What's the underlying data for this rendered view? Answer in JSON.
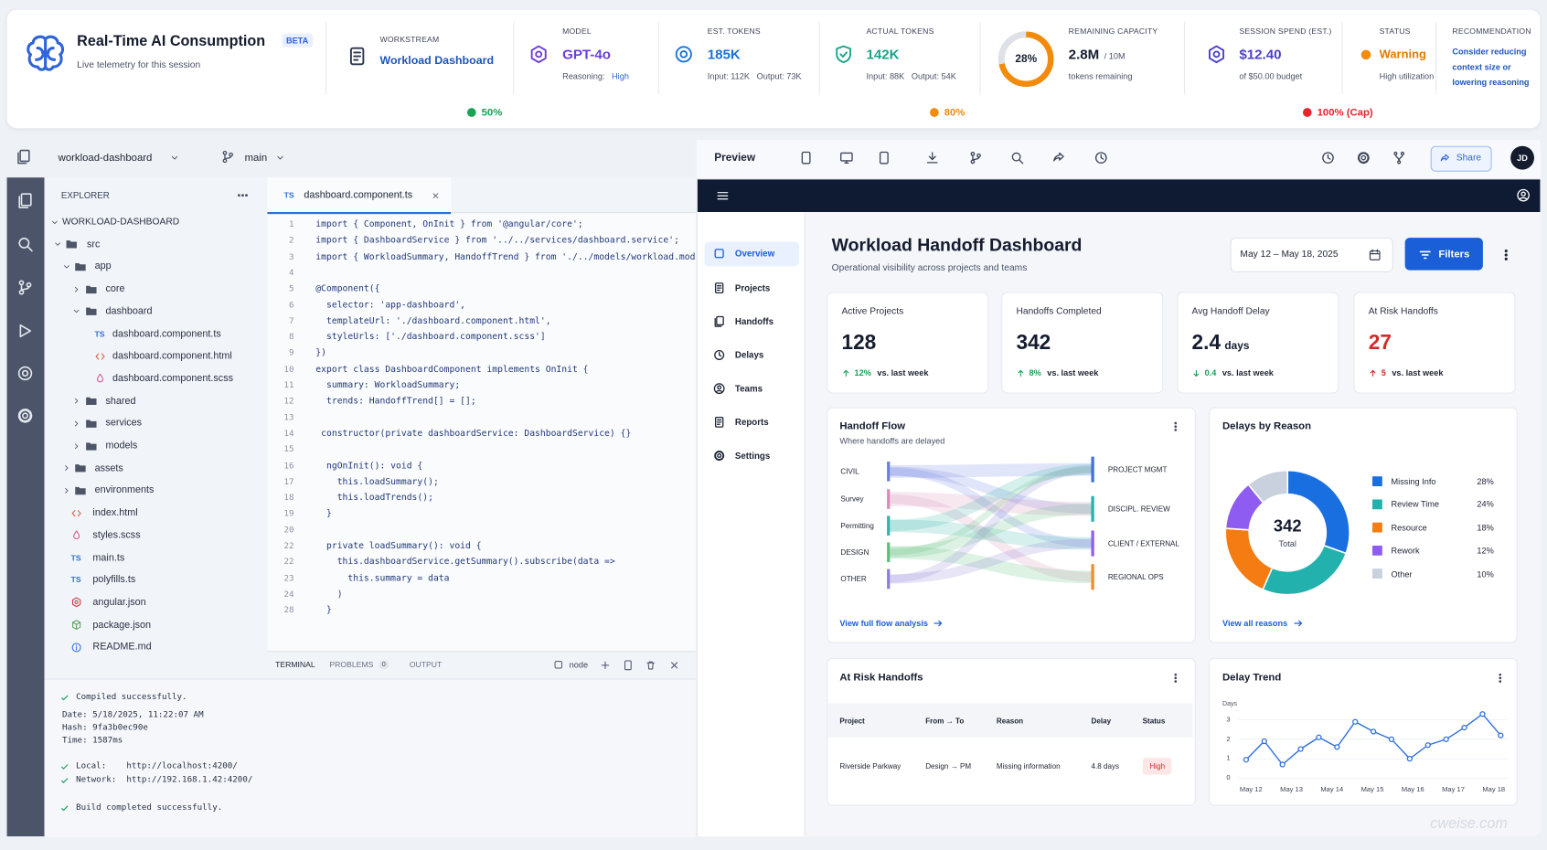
{
  "header": {
    "title": "Real-Time AI Consumption",
    "badge": "BETA",
    "subtitle": "Live telemetry for this session",
    "stats": [
      {
        "label": "WORKSTREAM",
        "value": "Workload Dashboard"
      },
      {
        "label": "MODEL",
        "value": "GPT-4o",
        "sub": "Reasoning:",
        "sub_value": "High"
      },
      {
        "label": "EST. TOKENS",
        "value": "185K",
        "sub": "Input: 112K   Output: 73K"
      },
      {
        "label": "ACTUAL TOKENS",
        "value": "142K",
        "sub": "Input: 88K   Output: 54K"
      },
      {
        "label": "REMAINING CAPACITY",
        "percent": {
          "value": 28,
          "label": "28%"
        },
        "value": "2.8M",
        "unit": "/ 10M",
        "sub": "tokens remaining"
      },
      {
        "label": "SESSION SPEND (EST.)",
        "value": "$12.40",
        "sub": "of $50.00 budget"
      },
      {
        "label": "STATUS",
        "value": "Warning",
        "sub": "High utilization"
      },
      {
        "label": "RECOMMENDATION",
        "lines": [
          "Consider reducing",
          "context size or",
          "lowering reasoning"
        ]
      }
    ],
    "thresholds": [
      "50%",
      "80%",
      "100% (Cap)"
    ]
  },
  "ide": {
    "project": "workload-dashboard",
    "branch": "main",
    "explorer": "EXPLORER",
    "tree": [
      {
        "label": "WORKLOAD-DASHBOARD",
        "depth": 0,
        "kind": "root"
      },
      {
        "label": "src",
        "depth": 1,
        "kind": "folder-open"
      },
      {
        "label": "app",
        "depth": 2,
        "kind": "folder-open"
      },
      {
        "label": "core",
        "depth": 3,
        "kind": "folder"
      },
      {
        "label": "dashboard",
        "depth": 3,
        "kind": "folder-open"
      },
      {
        "label": "dashboard.component.ts",
        "depth": 4,
        "kind": "ts",
        "badge": "TS"
      },
      {
        "label": "dashboard.component.html",
        "depth": 4,
        "kind": "html"
      },
      {
        "label": "dashboard.component.scss",
        "depth": 4,
        "kind": "scss"
      },
      {
        "label": "shared",
        "depth": 3,
        "kind": "folder"
      },
      {
        "label": "services",
        "depth": 3,
        "kind": "folder"
      },
      {
        "label": "models",
        "depth": 3,
        "kind": "folder"
      },
      {
        "label": "assets",
        "depth": 2,
        "kind": "folder"
      },
      {
        "label": "environments",
        "depth": 2,
        "kind": "folder"
      },
      {
        "label": "index.html",
        "depth": 2,
        "kind": "html"
      },
      {
        "label": "styles.scss",
        "depth": 2,
        "kind": "scss"
      },
      {
        "label": "main.ts",
        "depth": 2,
        "kind": "ts",
        "badge": "TS"
      },
      {
        "label": "polyfills.ts",
        "depth": 2,
        "kind": "ts",
        "badge": "TS"
      },
      {
        "label": "angular.json",
        "depth": 2,
        "kind": "angular"
      },
      {
        "label": "package.json",
        "depth": 2,
        "kind": "json"
      },
      {
        "label": "README.md",
        "depth": 2,
        "kind": "info"
      }
    ],
    "tab": {
      "badge": "TS",
      "name": "dashboard.component.ts"
    },
    "code": [
      {
        "n": "1",
        "code": "import { Component, OnInit } from '@angular/core';"
      },
      {
        "n": "2",
        "code": "import { DashboardService } from '../../services/dashboard.service';"
      },
      {
        "n": "3",
        "code": "import { WorkloadSummary, HandoffTrend } from './../models/workload.model';"
      },
      {
        "n": "4"
      },
      {
        "n": "5",
        "code": "@Component({"
      },
      {
        "n": "6",
        "code": "  selector: 'app-dashboard',"
      },
      {
        "n": "7",
        "code": "  templateUrl: './dashboard.component.html',"
      },
      {
        "n": "8",
        "code": "  styleUrls: ['./dashboard.component.scss']"
      },
      {
        "n": "9",
        "code": "})"
      },
      {
        "n": "10",
        "code": "export class DashboardComponent implements OnInit {"
      },
      {
        "n": "11",
        "code": "  summary: WorkloadSummary;"
      },
      {
        "n": "12",
        "code": "  trends: HandoffTrend[] = [];"
      },
      {
        "n": "13"
      },
      {
        "n": "14",
        "code": " constructor(private dashboardService: DashboardService) {}"
      },
      {
        "n": "15"
      },
      {
        "n": "16",
        "code": "  ngOnInit(): void {"
      },
      {
        "n": "17",
        "code": "    this.loadSummary();"
      },
      {
        "n": "18",
        "code": "    this.loadTrends();"
      },
      {
        "n": "19",
        "code": "  }"
      },
      {
        "n": "20"
      },
      {
        "n": "22",
        "code": "  private loadSummary(): void {"
      },
      {
        "n": "22",
        "code": "    this.dashboardService.getSummary().subscribe(data =>"
      },
      {
        "n": "23",
        "code": "      this.summary = data"
      },
      {
        "n": "24",
        "code": "    )"
      },
      {
        "n": "28",
        "code": "  }"
      }
    ],
    "panel_tabs": [
      "TERMINAL",
      "PROBLEMS",
      "OUTPUT"
    ],
    "problems_count": "0",
    "shell": "node",
    "terminal": [
      {
        "text": "Compiled successfully.",
        "ok": true
      },
      {
        "text": "Date: 5/18/2025, 11:22:07 AM"
      },
      {
        "text": "Hash: 9fa3b0ec90e"
      },
      {
        "text": "Time: 1587ms"
      },
      {
        "text": "Local:    http://localhost:4200/",
        "ok": true
      },
      {
        "text": "Network:  http://192.168.1.42:4200/",
        "ok": true
      },
      {
        "text": "Build completed successfully.",
        "ok": true
      }
    ]
  },
  "preview": {
    "title": "Preview",
    "share": "Share",
    "avatar": "JD"
  },
  "dashboard": {
    "nav": [
      "Overview",
      "Projects",
      "Handoffs",
      "Delays",
      "Teams",
      "Reports",
      "Settings"
    ],
    "active_nav": 0,
    "title": "Workload Handoff Dashboard",
    "subtitle": "Operational visibility across projects and teams",
    "date_range": "May 12 – May 18, 2025",
    "filters": "Filters",
    "kpis": [
      {
        "label": "Active Projects",
        "value": "128",
        "delta": "12%",
        "direction": "up",
        "note": "vs. last week",
        "tone": "good"
      },
      {
        "label": "Handoffs Completed",
        "value": "342",
        "delta": "8%",
        "direction": "up",
        "note": "vs. last week",
        "tone": "good"
      },
      {
        "label": "Avg Handoff Delay",
        "value": "2.4",
        "unit": "days",
        "delta": "0.4",
        "direction": "down",
        "note": "vs. last week",
        "tone": "good"
      },
      {
        "label": "At Risk Handoffs",
        "value": "27",
        "delta": "5",
        "direction": "up",
        "note": "vs. last week",
        "tone": "bad"
      }
    ],
    "flow": {
      "title": "Handoff Flow",
      "subtitle": "Where handoffs are delayed",
      "sources": [
        "CIVIL",
        "Survey",
        "Permitting",
        "DESIGN",
        "OTHER"
      ],
      "targets": [
        "PROJECT MGMT",
        "DISCIPL. REVIEW",
        "CLIENT / EXTERNAL",
        "REGIONAL OPS"
      ],
      "link": "View full flow analysis"
    },
    "at_risk": {
      "title": "At Risk Handoffs",
      "columns": [
        "Project",
        "From → To",
        "Reason",
        "Delay",
        "Status"
      ],
      "rows": [
        [
          "Riverside Parkway",
          "Design → PM",
          "Missing information",
          "4.8 days",
          "High"
        ]
      ]
    }
  },
  "chart_data": [
    {
      "type": "pie",
      "title": "Delays by Reason",
      "categories": [
        "Missing Info",
        "Review Time",
        "Resource",
        "Rework",
        "Other"
      ],
      "values": [
        28,
        24,
        18,
        12,
        10
      ],
      "value_labels": [
        "28%",
        "24%",
        "18%",
        "12%",
        "10%"
      ],
      "colors": [
        "#1a6fe0",
        "#22b1ad",
        "#f47c12",
        "#8e5cf0",
        "#c9d0de"
      ],
      "center_value": "342",
      "center_label": "Total",
      "link": "View all reasons"
    },
    {
      "type": "line",
      "title": "Delay Trend",
      "y_label": "Days",
      "values": [
        0.95,
        1.9,
        0.7,
        1.5,
        2.1,
        1.6,
        2.9,
        2.4,
        2.0,
        1.0,
        1.7,
        2.0,
        2.6,
        3.3,
        2.2
      ],
      "x_labels": [
        "May 12",
        "May 13",
        "May 14",
        "May 15",
        "May 16",
        "May 17",
        "May 18"
      ],
      "ylim": [
        0,
        3.5
      ],
      "yticks": [
        0,
        1,
        2,
        3
      ],
      "color": "#2f6fe0"
    }
  ],
  "watermark": "cweise.com"
}
